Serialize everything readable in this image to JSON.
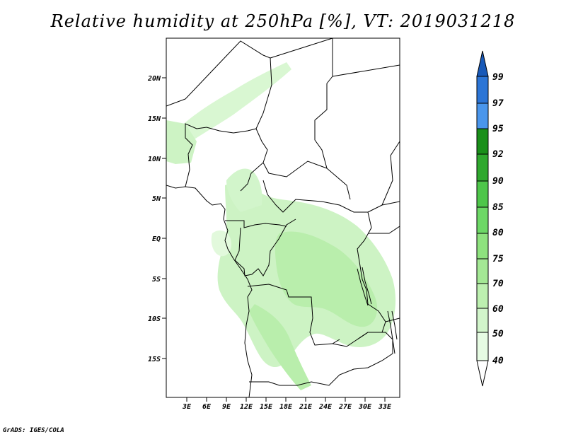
{
  "title": "Relative humidity at 250hPa [%], VT: 2019031218",
  "credit": "GrADS: IGES/COLA",
  "map": {
    "lat_labels": [
      "20N",
      "15N",
      "10N",
      "5N",
      "EQ",
      "5S",
      "10S",
      "15S"
    ],
    "lon_labels": [
      "3E",
      "6E",
      "9E",
      "12E",
      "15E",
      "18E",
      "21E",
      "24E",
      "27E",
      "30E",
      "33E"
    ]
  },
  "colorbar": {
    "levels": [
      "40",
      "50",
      "60",
      "70",
      "75",
      "80",
      "85",
      "90",
      "92",
      "95",
      "97",
      "99"
    ],
    "colors": [
      "#ffffff",
      "#e6fbe3",
      "#d2f5cb",
      "#bdf0b0",
      "#a4e895",
      "#8ee27e",
      "#6dd866",
      "#4ec64a",
      "#2fa82e",
      "#1a8f1a",
      "#4a96ec",
      "#2c75d6",
      "#1859b8"
    ]
  }
}
